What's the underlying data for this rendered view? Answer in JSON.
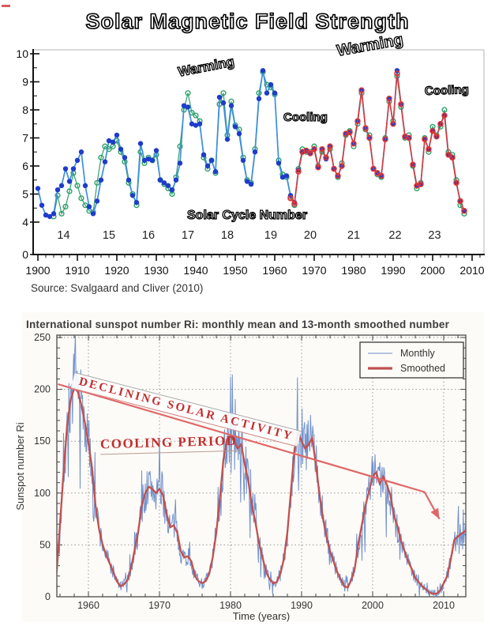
{
  "page": {
    "background": "#ffffff",
    "colors": {
      "top_blue_marker": "#1E3CCB",
      "top_blue_line": "#3F8FE0",
      "top_green": "#2FA06A",
      "top_red": "#E03535",
      "monthly_blue": "#7191CC",
      "smoothed_red": "#C05050",
      "trend_red": "#E06868",
      "annotation_red": "#C22F2F",
      "grid_gray": "#9A9A9A",
      "frame_gray": "#4A4A4A"
    }
  },
  "chart_data": [
    {
      "type": "line",
      "title": "Solar Magnetic Field Strength",
      "source": "Source: Svalgaard and Cliver (2010)",
      "xlabel": "",
      "ylabel": "",
      "xlim": [
        1898,
        2013
      ],
      "ylim": [
        4,
        10
      ],
      "y_axis_break_to_zero": true,
      "xticks": [
        1900,
        1910,
        1920,
        1930,
        1940,
        1950,
        1960,
        1970,
        1980,
        1990,
        2000,
        2010
      ],
      "yticks": [
        0,
        4,
        5,
        6,
        7,
        8,
        9,
        10
      ],
      "grid": false,
      "legend": "none",
      "cycle_axis_label": "Solar Cycle Number",
      "cycles": [
        {
          "label": "14",
          "year": 1906.5
        },
        {
          "label": "15",
          "year": 1918
        },
        {
          "label": "16",
          "year": 1928
        },
        {
          "label": "17",
          "year": 1938
        },
        {
          "label": "18",
          "year": 1948
        },
        {
          "label": "19",
          "year": 1959
        },
        {
          "label": "20",
          "year": 1969
        },
        {
          "label": "21",
          "year": 1980
        },
        {
          "label": "22",
          "year": 1990.5
        },
        {
          "label": "23",
          "year": 2000.5
        }
      ],
      "annotations": [
        {
          "text": "Warming",
          "x": 1937,
          "y": 9.2
        },
        {
          "text": "Cooling",
          "x": 1967,
          "y": 7.4
        },
        {
          "text": "Warming",
          "x": 1983,
          "y": 9.8
        },
        {
          "text": "Cooling",
          "x": 2002,
          "y": 8.6
        },
        {
          "text": "Solar Cycle Number",
          "x": 1948,
          "y": 4.4
        }
      ],
      "series": [
        {
          "name": "IDV-based B (filled blue)",
          "marker": "filled",
          "start_year": 1900,
          "values": [
            5.2,
            4.6,
            4.25,
            4.2,
            4.3,
            5.15,
            5.3,
            5.9,
            5.45,
            5.9,
            6.2,
            6.5,
            5.3,
            4.55,
            4.3,
            4.75,
            5.5,
            6.15,
            6.9,
            6.85,
            7.1,
            6.6,
            6.3,
            5.5,
            4.95,
            4.7,
            6.8,
            6.2,
            6.25,
            6.2,
            6.55,
            5.5,
            5.4,
            5.3,
            5.15,
            5.5,
            6.1,
            8.15,
            8.1,
            7.5,
            7.45,
            7.5,
            6.4,
            6.0,
            6.2,
            5.8,
            8.45,
            8.25,
            6.95,
            8.15,
            7.4,
            7.15,
            6.2,
            5.45,
            5.35,
            6.5,
            8.4,
            9.4,
            8.6,
            8.9,
            8.6,
            6.1,
            5.6,
            5.65,
            4.95,
            4.7,
            5.85,
            6.5,
            6.55,
            6.45,
            6.6,
            5.95,
            6.6,
            6.25,
            6.7,
            5.9,
            5.65,
            6.0,
            7.15,
            7.2,
            6.8,
            7.6,
            8.7,
            7.35,
            7.0,
            5.9,
            5.75,
            5.65,
            6.95,
            8.4,
            7.5,
            9.4,
            8.2,
            7.05,
            7.0,
            6.05,
            5.3,
            5.35,
            6.95,
            6.6,
            7.25,
            7.05,
            7.5,
            7.8,
            6.4,
            6.3,
            5.4,
            4.75,
            4.4
          ]
        },
        {
          "name": "open green series",
          "marker": "open",
          "start_year": 1904,
          "values": [
            4.2,
            4.95,
            4.3,
            4.55,
            5.1,
            5.75,
            5.3,
            4.85,
            4.6,
            4.4,
            4.35,
            5.4,
            6.3,
            6.7,
            6.6,
            6.7,
            6.9,
            6.5,
            6.15,
            5.4,
            5.0,
            4.6,
            6.5,
            6.1,
            6.3,
            6.2,
            6.4,
            5.5,
            5.35,
            5.2,
            5.0,
            5.6,
            6.7,
            8.0,
            8.6,
            7.9,
            7.8,
            7.6,
            6.3,
            5.9,
            6.2,
            5.75,
            8.2,
            8.6,
            7.1,
            8.3,
            7.45,
            7.3,
            6.3,
            5.5,
            5.4,
            6.6,
            8.6,
            9.35,
            8.9,
            8.8,
            8.55,
            6.2,
            5.7,
            5.6,
            4.9,
            4.6,
            5.9,
            6.6,
            6.5,
            6.5,
            6.7,
            6.0,
            6.5,
            6.3,
            6.6,
            5.9,
            5.6,
            6.1,
            7.1,
            7.25,
            6.7,
            7.5,
            8.6,
            7.3,
            7.1,
            5.9,
            5.7,
            5.6,
            7.0,
            8.3,
            7.6,
            9.2,
            8.1,
            7.0,
            7.1,
            6.0,
            5.2,
            5.4,
            7.0,
            6.5,
            7.4,
            7.1,
            7.4,
            8.0,
            6.5,
            6.4,
            5.5,
            4.6,
            4.3
          ]
        },
        {
          "name": "open red series",
          "marker": "open",
          "start_year": 1964,
          "values": [
            4.85,
            4.65,
            5.8,
            6.5,
            6.55,
            6.45,
            6.6,
            5.95,
            6.6,
            6.3,
            6.7,
            5.9,
            5.65,
            6.0,
            7.15,
            7.2,
            6.8,
            7.6,
            8.7,
            7.35,
            7.0,
            5.9,
            5.75,
            5.65,
            6.95,
            8.4,
            7.5,
            9.3,
            8.2,
            7.05,
            7.0,
            6.05,
            5.3,
            5.35,
            6.95,
            6.6,
            7.25,
            7.05,
            7.5,
            7.8,
            6.4,
            6.3,
            5.4,
            4.75,
            4.4
          ]
        }
      ]
    },
    {
      "type": "line",
      "title": "International sunspot number Ri: monthly mean and 13-month smoothed number",
      "xlabel": "Time (years)",
      "ylabel": "Sunspot number Ri",
      "xlim": [
        1955.5,
        2013.2
      ],
      "ylim": [
        0,
        250
      ],
      "xticks": [
        1960,
        1970,
        1980,
        1990,
        2000,
        2010
      ],
      "yticks": [
        0,
        50,
        100,
        150,
        200,
        250
      ],
      "grid": true,
      "legend_position": "upper right",
      "legend": [
        {
          "label": "Monthly",
          "width": 1
        },
        {
          "label": "Smoothed",
          "width": 3
        }
      ],
      "annotations": [
        {
          "text": "DECLINING SOLAR ACTIVITY",
          "angle_deg": 14.5
        },
        {
          "text": "COOLING PERIOD",
          "angle_deg": -1.5
        }
      ],
      "trend_arrow": {
        "points_year_value": [
          [
            1955.7,
            205
          ],
          [
            2007.3,
            101
          ],
          [
            2009.4,
            75
          ]
        ]
      },
      "smoothed": {
        "start": 1955.0,
        "step": 0.5,
        "values": [
          5,
          20,
          70,
          120,
          165,
          190,
          201,
          198,
          185,
          168,
          148,
          125,
          88,
          65,
          50,
          40,
          32,
          24,
          15,
          10,
          12,
          16,
          28,
          45,
          62,
          88,
          100,
          106,
          104,
          100,
          104,
          98,
          80,
          67,
          69,
          62,
          44,
          38,
          39,
          34,
          20,
          15,
          13,
          15,
          22,
          38,
          62,
          95,
          132,
          152,
          155,
          150,
          143,
          147,
          128,
          112,
          88,
          72,
          52,
          38,
          24,
          17,
          13,
          14,
          22,
          36,
          62,
          102,
          142,
          158,
          150,
          143,
          147,
          153,
          128,
          100,
          76,
          58,
          44,
          34,
          24,
          17,
          10,
          9,
          16,
          28,
          52,
          70,
          88,
          102,
          116,
          120,
          109,
          116,
          108,
          98,
          78,
          68,
          54,
          44,
          34,
          27,
          18,
          14,
          10,
          7,
          4,
          3,
          3,
          6,
          13,
          20,
          36,
          55,
          58,
          61,
          63,
          68
        ]
      },
      "monthly_noise": {
        "base": 4,
        "factor": 0.22,
        "seed": 7,
        "note": "monthly mean scatters around smoothed curve; 1957-58 peak reaches ~250"
      }
    }
  ]
}
